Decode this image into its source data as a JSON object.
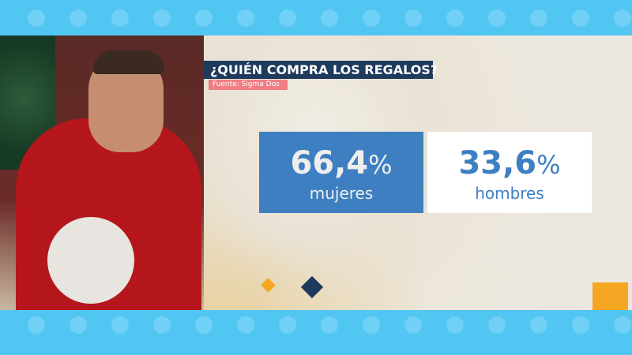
{
  "graphic": {
    "title": "¿QUIÉN COMPRA LOS REGALOS?",
    "source": "Fuente: Sigma Dos",
    "stats": [
      {
        "value": "66,4",
        "unit": "%",
        "label": "mujeres",
        "share_percent": 66.4
      },
      {
        "value": "33,6",
        "unit": "%",
        "label": "hombres",
        "share_percent": 33.6
      }
    ]
  },
  "colors": {
    "band": "#52c6f3",
    "title_bg": "#1e3a5d",
    "source_bg": "#ef7d82",
    "women_bg": "#3d7fc1",
    "men_bg": "#ffffff",
    "accent_orange": "#f5a623"
  },
  "icons": [
    "bell-icon",
    "star-icon",
    "gift-icon",
    "snowflake-icon",
    "ornament-icon",
    "gingerbread-icon",
    "candy-cane-icon"
  ]
}
